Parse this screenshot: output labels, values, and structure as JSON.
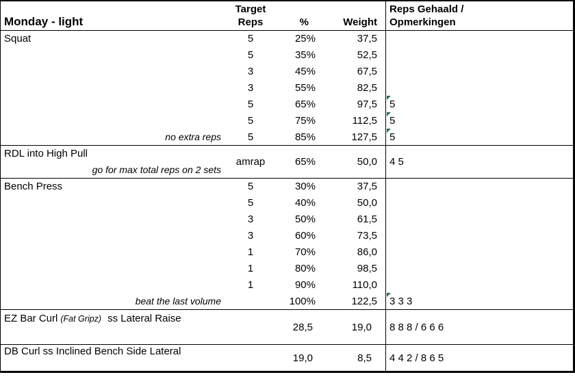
{
  "header": {
    "title": "Monday - light",
    "target_line1": "Target",
    "target_line2": "Reps",
    "pct": "%",
    "weight": "Weight",
    "notes_line1": "Reps Gehaald /",
    "notes_line2": "Opmerkingen"
  },
  "squat": {
    "name": "Squat",
    "footnote": "no extra reps",
    "rows": [
      {
        "target": "5",
        "pct": "25%",
        "weight": "37,5",
        "note": ""
      },
      {
        "target": "5",
        "pct": "35%",
        "weight": "52,5",
        "note": ""
      },
      {
        "target": "3",
        "pct": "45%",
        "weight": "67,5",
        "note": ""
      },
      {
        "target": "3",
        "pct": "55%",
        "weight": "82,5",
        "note": ""
      },
      {
        "target": "5",
        "pct": "65%",
        "weight": "97,5",
        "note": "5"
      },
      {
        "target": "5",
        "pct": "75%",
        "weight": "112,5",
        "note": "5"
      },
      {
        "target": "5",
        "pct": "85%",
        "weight": "127,5",
        "note": "5"
      }
    ]
  },
  "rdl": {
    "name": "RDL into High Pull",
    "footnote": "go for max total reps on 2 sets",
    "target": "amrap",
    "pct": "65%",
    "weight": "50,0",
    "note": "4 5"
  },
  "bench": {
    "name": "Bench Press",
    "footnote": "beat the last volume",
    "rows": [
      {
        "target": "5",
        "pct": "30%",
        "weight": "37,5",
        "note": ""
      },
      {
        "target": "5",
        "pct": "40%",
        "weight": "50,0",
        "note": ""
      },
      {
        "target": "3",
        "pct": "50%",
        "weight": "61,5",
        "note": ""
      },
      {
        "target": "3",
        "pct": "60%",
        "weight": "73,5",
        "note": ""
      },
      {
        "target": "1",
        "pct": "70%",
        "weight": "86,0",
        "note": ""
      },
      {
        "target": "1",
        "pct": "80%",
        "weight": "98,5",
        "note": ""
      },
      {
        "target": "1",
        "pct": "90%",
        "weight": "110,0",
        "note": ""
      },
      {
        "target": "",
        "pct": "100%",
        "weight": "122,5",
        "note": "3 3 3"
      }
    ]
  },
  "ez": {
    "name_part1": "EZ Bar Curl",
    "name_italic": "(Fat Gripz)",
    "name_part2": "ss Lateral Raise",
    "pct": "28,5",
    "weight": "19,0",
    "note": "8 8 8 / 6 6 6"
  },
  "db": {
    "name": "DB Curl ss Inclined Bench Side Lateral",
    "pct": "19,0",
    "weight": "8,5",
    "note": "4 4 2 / 8 6 5"
  },
  "colors": {
    "flag_green": "#1e7145"
  }
}
